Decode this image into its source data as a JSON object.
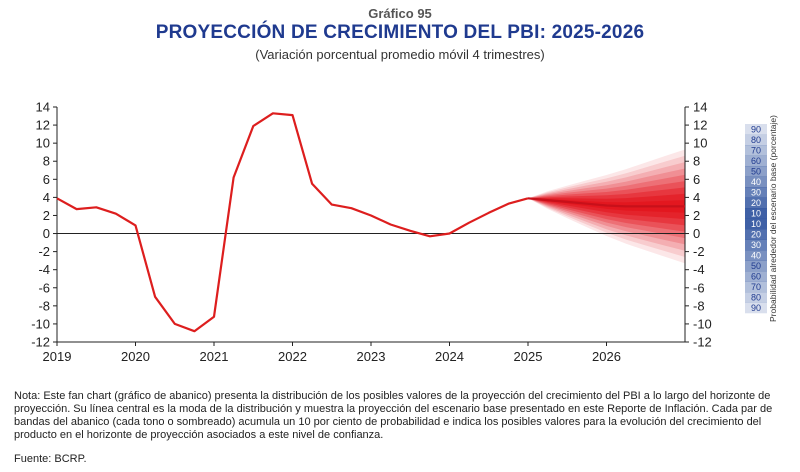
{
  "header": {
    "figure_number": "Gráfico 95",
    "title": "PROYECCIÓN DE CRECIMIENTO DEL PBI: 2025-2026",
    "subtitle": "(Variación porcentual promedio móvil 4 trimestres)"
  },
  "chart_data": {
    "type": "line",
    "ylim": [
      -12,
      14
    ],
    "y_ticks": [
      14,
      12,
      10,
      8,
      6,
      4,
      2,
      0,
      -2,
      -4,
      -6,
      -8,
      -10,
      -12
    ],
    "x_ticks": [
      "2019",
      "2020",
      "2021",
      "2022",
      "2023",
      "2024",
      "2025",
      "2026"
    ],
    "grid": false,
    "line_color": "#dd1e1e",
    "fan_color": "#e3141c",
    "historical": {
      "x": [
        2019.0,
        2019.25,
        2019.5,
        2019.75,
        2020.0,
        2020.25,
        2020.5,
        2020.75,
        2021.0,
        2021.25,
        2021.5,
        2021.75,
        2022.0,
        2022.25,
        2022.5,
        2022.75,
        2023.0,
        2023.25,
        2023.5,
        2023.75,
        2024.0,
        2024.25,
        2024.5,
        2024.75,
        2025.0
      ],
      "y": [
        3.9,
        2.7,
        2.9,
        2.2,
        0.9,
        -7.0,
        -10.0,
        -10.8,
        -9.2,
        6.2,
        11.9,
        13.3,
        13.1,
        5.5,
        3.2,
        2.8,
        2.0,
        1.0,
        0.3,
        -0.3,
        0.0,
        1.2,
        2.3,
        3.3,
        3.9
      ]
    },
    "projection": {
      "x": [
        2025.0,
        2025.25,
        2025.5,
        2025.75,
        2026.0,
        2026.25,
        2026.5,
        2026.75,
        2027.0
      ],
      "y": [
        3.9,
        3.7,
        3.5,
        3.3,
        3.1,
        3.0,
        3.0,
        3.0,
        3.0
      ],
      "band_halfwidth_at_end_90": 6.3
    },
    "fan_legend": {
      "title": "Probabilidad alrededor del escenario base (porcentaje)",
      "levels": [
        "90",
        "80",
        "70",
        "60",
        "50",
        "40",
        "30",
        "20",
        "10",
        "10",
        "20",
        "30",
        "40",
        "50",
        "60",
        "70",
        "80",
        "90"
      ]
    }
  },
  "note": "Nota: Este fan chart (gráfico de abanico) presenta la distribución de los posibles valores de la proyección del crecimiento del PBI a lo largo del horizonte de proyección. Su línea central es la moda de la distribución y muestra la proyección del escenario base presentado en este Reporte de Inflación. Cada par de bandas del abanico (cada tono o sombreado) acumula un 10 por ciento de probabilidad e indica los posibles valores para la evolución del crecimiento del producto en el horizonte de proyección asociados a este nivel de confianza.",
  "source": "Fuente: BCRP."
}
